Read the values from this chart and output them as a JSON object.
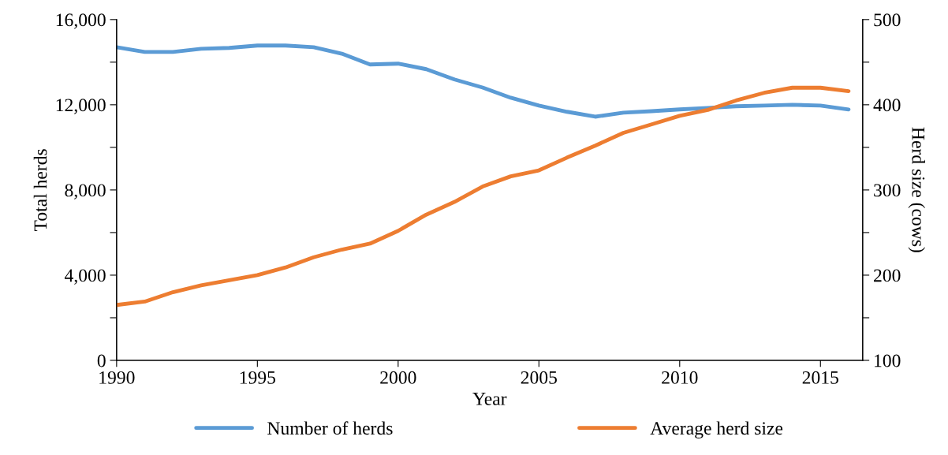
{
  "chart_data": {
    "type": "line",
    "xlabel": "Year",
    "ylabel": "Total herds",
    "y2label": "Herd size (cows)",
    "x": [
      1990,
      1991,
      1992,
      1993,
      1994,
      1995,
      1996,
      1997,
      1998,
      1999,
      2000,
      2001,
      2002,
      2003,
      2004,
      2005,
      2006,
      2007,
      2008,
      2009,
      2010,
      2011,
      2012,
      2013,
      2014,
      2015,
      2016
    ],
    "series": [
      {
        "name": "Number of herds",
        "color": "#5b9bd5",
        "values": [
          14700,
          14480,
          14480,
          14630,
          14670,
          14780,
          14780,
          14700,
          14400,
          13890,
          13930,
          13670,
          13190,
          12810,
          12330,
          11960,
          11670,
          11440,
          11630,
          11700,
          11780,
          11850,
          11930,
          11960,
          12000,
          11960,
          11780
        ]
      },
      {
        "name": "Average herd size",
        "color": "#ed7d31",
        "axis": "y2",
        "values": [
          165,
          169,
          180,
          188,
          194,
          200,
          209,
          221,
          230,
          237,
          252,
          271,
          286,
          304,
          316,
          323,
          338,
          352,
          367,
          377,
          387,
          394,
          405,
          414,
          420,
          420,
          416
        ]
      }
    ],
    "xlim": [
      1990,
      2016.5
    ],
    "xticks": [
      1990,
      1995,
      2000,
      2005,
      2010,
      2015
    ],
    "ylim": [
      0,
      16000
    ],
    "yticks": [
      {
        "value": 0,
        "label": "0"
      },
      {
        "value": 2000,
        "label": null
      },
      {
        "value": 4000,
        "label": "4,000"
      },
      {
        "value": 6000,
        "label": null
      },
      {
        "value": 8000,
        "label": "8,000"
      },
      {
        "value": 10000,
        "label": null
      },
      {
        "value": 12000,
        "label": "12,000"
      },
      {
        "value": 14000,
        "label": null
      },
      {
        "value": 16000,
        "label": "16,000"
      }
    ],
    "y2lim": [
      100,
      500
    ],
    "y2ticks": [
      100,
      {
        "value": 150,
        "label": null
      },
      200,
      {
        "value": 250,
        "label": null
      },
      300,
      {
        "value": 350,
        "label": null
      },
      400,
      {
        "value": 450,
        "label": null
      },
      500
    ],
    "grid": false,
    "legend": "bottom",
    "marker": "none",
    "line_style": "solid"
  }
}
